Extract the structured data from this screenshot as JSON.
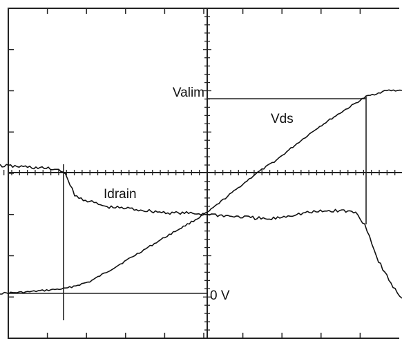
{
  "chart_data": {
    "type": "line",
    "grid": "dotted-divisions",
    "series": [
      {
        "name": "Vds",
        "color": "#111111",
        "points": [
          [
            0,
            425
          ],
          [
            40,
            423
          ],
          [
            95,
            418
          ],
          [
            130,
            408
          ],
          [
            165,
            388
          ],
          [
            205,
            364
          ],
          [
            245,
            340
          ],
          [
            280,
            320
          ],
          [
            300,
            308
          ],
          [
            320,
            292
          ],
          [
            345,
            272
          ],
          [
            370,
            252
          ],
          [
            400,
            232
          ],
          [
            430,
            208
          ],
          [
            460,
            185
          ],
          [
            495,
            162
          ],
          [
            530,
            140
          ],
          [
            560,
            131
          ],
          [
            582,
            131
          ]
        ]
      },
      {
        "name": "Idrain",
        "color": "#111111",
        "points": [
          [
            0,
            240
          ],
          [
            40,
            242
          ],
          [
            88,
            246
          ],
          [
            98,
            258
          ],
          [
            108,
            284
          ],
          [
            130,
            292
          ],
          [
            155,
            300
          ],
          [
            185,
            302
          ],
          [
            210,
            305
          ],
          [
            240,
            308
          ],
          [
            270,
            309
          ],
          [
            300,
            310
          ],
          [
            330,
            313
          ],
          [
            360,
            315
          ],
          [
            390,
            318
          ],
          [
            420,
            312
          ],
          [
            445,
            308
          ],
          [
            470,
            306
          ],
          [
            495,
            305
          ],
          [
            515,
            308
          ],
          [
            528,
            325
          ],
          [
            535,
            342
          ],
          [
            545,
            372
          ],
          [
            560,
            400
          ],
          [
            572,
            420
          ],
          [
            582,
            432
          ]
        ]
      }
    ],
    "annotations": [
      {
        "text": "Valim",
        "role": "level-label"
      },
      {
        "text": "Vds",
        "role": "series-label"
      },
      {
        "text": "Idrain",
        "role": "series-label"
      },
      {
        "text": "0 V",
        "role": "level-label"
      }
    ]
  }
}
